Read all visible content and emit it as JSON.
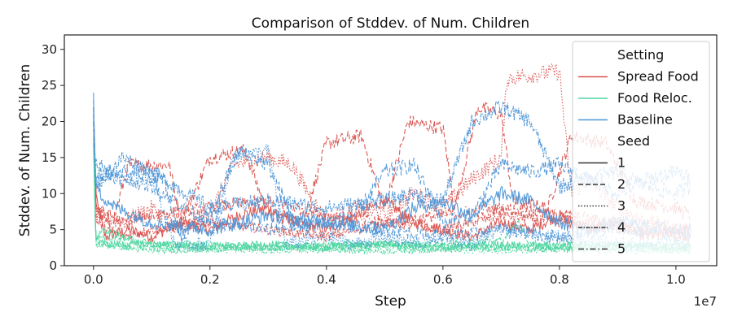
{
  "chart_data": {
    "type": "line",
    "title": "Comparison of Stddev. of Num. Children",
    "xlabel": "Step",
    "ylabel": "Stddev. of Num. Children",
    "x_offset_label": "1e7",
    "xlim": [
      -0.05,
      1.07
    ],
    "ylim": [
      0,
      32
    ],
    "xticks": [
      0.0,
      0.2,
      0.4,
      0.6,
      0.8,
      1.0
    ],
    "xtick_labels": [
      "0.0",
      "0.2",
      "0.4",
      "0.6",
      "0.8",
      "1.0"
    ],
    "yticks": [
      0,
      5,
      10,
      15,
      20,
      25,
      30
    ],
    "ytick_labels": [
      "0",
      "5",
      "10",
      "15",
      "20",
      "25",
      "30"
    ],
    "grid": false,
    "legend_placement": "upper-right",
    "legend": {
      "hue_title": "Setting",
      "hue_entries": [
        {
          "name": "Spread Food",
          "color": "#d9534f"
        },
        {
          "name": "Food Reloc.",
          "color": "#4dd6a0"
        },
        {
          "name": "Baseline",
          "color": "#4f97d8"
        }
      ],
      "style_title": "Seed",
      "style_entries": [
        {
          "name": "1",
          "dash": "solid"
        },
        {
          "name": "2",
          "dash": "dashed"
        },
        {
          "name": "3",
          "dash": "dotted"
        },
        {
          "name": "4",
          "dash": "dashdot-dense"
        },
        {
          "name": "5",
          "dash": "dashdot"
        }
      ]
    },
    "x_end": 1.025,
    "series": [
      {
        "name": "Spread Food",
        "seed": "1",
        "color": "#d9534f",
        "dash": "solid",
        "noise": 0.8,
        "points": [
          [
            0.0,
            22
          ],
          [
            0.005,
            9
          ],
          [
            0.02,
            4
          ],
          [
            0.06,
            5
          ],
          [
            0.1,
            4
          ],
          [
            0.15,
            6
          ],
          [
            0.2,
            5
          ],
          [
            0.25,
            7
          ],
          [
            0.3,
            8
          ],
          [
            0.35,
            6
          ],
          [
            0.4,
            5
          ],
          [
            0.45,
            7
          ],
          [
            0.5,
            9
          ],
          [
            0.55,
            6
          ],
          [
            0.6,
            5
          ],
          [
            0.65,
            4
          ],
          [
            0.7,
            6
          ],
          [
            0.75,
            5
          ],
          [
            0.8,
            7
          ],
          [
            0.85,
            5
          ],
          [
            0.9,
            6
          ],
          [
            0.95,
            4
          ],
          [
            1.0,
            5
          ],
          [
            1.025,
            5
          ]
        ]
      },
      {
        "name": "Spread Food",
        "seed": "2",
        "color": "#d9534f",
        "dash": "dashed",
        "noise": 1.0,
        "points": [
          [
            0.0,
            20
          ],
          [
            0.005,
            8
          ],
          [
            0.03,
            5
          ],
          [
            0.06,
            14
          ],
          [
            0.13,
            14
          ],
          [
            0.15,
            6
          ],
          [
            0.2,
            15
          ],
          [
            0.26,
            16
          ],
          [
            0.3,
            7
          ],
          [
            0.36,
            6
          ],
          [
            0.4,
            17
          ],
          [
            0.46,
            18
          ],
          [
            0.5,
            8
          ],
          [
            0.54,
            20
          ],
          [
            0.6,
            19
          ],
          [
            0.62,
            8
          ],
          [
            0.66,
            22
          ],
          [
            0.7,
            21
          ],
          [
            0.72,
            9
          ],
          [
            0.78,
            8
          ],
          [
            0.82,
            18
          ],
          [
            0.88,
            17
          ],
          [
            0.93,
            9
          ],
          [
            1.0,
            8
          ],
          [
            1.025,
            7
          ]
        ]
      },
      {
        "name": "Spread Food",
        "seed": "3",
        "color": "#d9534f",
        "dash": "dotted",
        "noise": 1.2,
        "points": [
          [
            0.0,
            21
          ],
          [
            0.005,
            7
          ],
          [
            0.05,
            6
          ],
          [
            0.1,
            8
          ],
          [
            0.15,
            5
          ],
          [
            0.2,
            7
          ],
          [
            0.24,
            14
          ],
          [
            0.3,
            15
          ],
          [
            0.34,
            14
          ],
          [
            0.4,
            6
          ],
          [
            0.45,
            8
          ],
          [
            0.5,
            7
          ],
          [
            0.55,
            10
          ],
          [
            0.6,
            8
          ],
          [
            0.65,
            12
          ],
          [
            0.7,
            15
          ],
          [
            0.71,
            26
          ],
          [
            0.8,
            27
          ],
          [
            0.82,
            10
          ],
          [
            0.85,
            12
          ],
          [
            0.9,
            8
          ],
          [
            0.95,
            6
          ],
          [
            1.0,
            5
          ],
          [
            1.025,
            4
          ]
        ]
      },
      {
        "name": "Spread Food",
        "seed": "4",
        "color": "#d9534f",
        "dash": "dashdot-dense",
        "noise": 0.7,
        "points": [
          [
            0.0,
            19
          ],
          [
            0.005,
            6
          ],
          [
            0.05,
            4
          ],
          [
            0.1,
            5
          ],
          [
            0.2,
            6
          ],
          [
            0.3,
            5
          ],
          [
            0.4,
            4
          ],
          [
            0.5,
            6
          ],
          [
            0.6,
            5
          ],
          [
            0.7,
            7
          ],
          [
            0.8,
            6
          ],
          [
            0.9,
            5
          ],
          [
            1.0,
            4
          ],
          [
            1.025,
            4
          ]
        ]
      },
      {
        "name": "Spread Food",
        "seed": "5",
        "color": "#d9534f",
        "dash": "dashdot",
        "noise": 0.9,
        "points": [
          [
            0.0,
            20
          ],
          [
            0.005,
            8
          ],
          [
            0.05,
            6
          ],
          [
            0.1,
            7
          ],
          [
            0.2,
            8
          ],
          [
            0.3,
            9
          ],
          [
            0.4,
            7
          ],
          [
            0.5,
            6
          ],
          [
            0.6,
            7
          ],
          [
            0.7,
            8
          ],
          [
            0.8,
            7
          ],
          [
            0.9,
            6
          ],
          [
            1.0,
            5
          ],
          [
            1.025,
            5
          ]
        ]
      },
      {
        "name": "Food Reloc.",
        "seed": "1",
        "color": "#4dd6a0",
        "dash": "solid",
        "noise": 0.5,
        "points": [
          [
            0.0,
            18
          ],
          [
            0.004,
            4
          ],
          [
            0.02,
            3
          ],
          [
            0.1,
            3
          ],
          [
            0.2,
            2.5
          ],
          [
            0.3,
            3
          ],
          [
            0.4,
            2.5
          ],
          [
            0.5,
            3
          ],
          [
            0.6,
            2.5
          ],
          [
            0.7,
            3
          ],
          [
            0.8,
            2.5
          ],
          [
            0.9,
            3
          ],
          [
            1.0,
            2.5
          ],
          [
            1.025,
            2.5
          ]
        ]
      },
      {
        "name": "Food Reloc.",
        "seed": "2",
        "color": "#4dd6a0",
        "dash": "dashed",
        "noise": 0.5,
        "points": [
          [
            0.0,
            17
          ],
          [
            0.004,
            4
          ],
          [
            0.02,
            5
          ],
          [
            0.05,
            4
          ],
          [
            0.1,
            3
          ],
          [
            0.2,
            3
          ],
          [
            0.3,
            2.5
          ],
          [
            0.4,
            3
          ],
          [
            0.5,
            3
          ],
          [
            0.6,
            3
          ],
          [
            0.7,
            3.5
          ],
          [
            0.73,
            6
          ],
          [
            0.75,
            3
          ],
          [
            0.8,
            3
          ],
          [
            0.9,
            2.5
          ],
          [
            1.0,
            3
          ],
          [
            1.025,
            3
          ]
        ]
      },
      {
        "name": "Food Reloc.",
        "seed": "3",
        "color": "#4dd6a0",
        "dash": "dotted",
        "noise": 0.4,
        "points": [
          [
            0.0,
            16
          ],
          [
            0.004,
            3
          ],
          [
            0.1,
            2.5
          ],
          [
            0.3,
            2
          ],
          [
            0.5,
            2.5
          ],
          [
            0.7,
            2
          ],
          [
            0.9,
            2.5
          ],
          [
            1.025,
            2
          ]
        ]
      },
      {
        "name": "Food Reloc.",
        "seed": "4",
        "color": "#4dd6a0",
        "dash": "dashdot-dense",
        "noise": 0.4,
        "points": [
          [
            0.0,
            17
          ],
          [
            0.004,
            3
          ],
          [
            0.1,
            2
          ],
          [
            0.3,
            2.5
          ],
          [
            0.5,
            2
          ],
          [
            0.7,
            2.5
          ],
          [
            0.9,
            2
          ],
          [
            1.025,
            2
          ]
        ]
      },
      {
        "name": "Food Reloc.",
        "seed": "5",
        "color": "#4dd6a0",
        "dash": "dashdot",
        "noise": 0.5,
        "points": [
          [
            0.0,
            18
          ],
          [
            0.004,
            4
          ],
          [
            0.1,
            3
          ],
          [
            0.3,
            2.5
          ],
          [
            0.5,
            3
          ],
          [
            0.7,
            2.5
          ],
          [
            0.9,
            3
          ],
          [
            1.025,
            2.5
          ]
        ]
      },
      {
        "name": "Baseline",
        "seed": "1",
        "color": "#4f97d8",
        "dash": "solid",
        "noise": 1.0,
        "points": [
          [
            0.0,
            24
          ],
          [
            0.003,
            12
          ],
          [
            0.01,
            10
          ],
          [
            0.04,
            8
          ],
          [
            0.1,
            6
          ],
          [
            0.2,
            5
          ],
          [
            0.3,
            7
          ],
          [
            0.4,
            6
          ],
          [
            0.5,
            5
          ],
          [
            0.55,
            8
          ],
          [
            0.6,
            9
          ],
          [
            0.65,
            7
          ],
          [
            0.7,
            10
          ],
          [
            0.75,
            9
          ],
          [
            0.8,
            6
          ],
          [
            0.85,
            5
          ],
          [
            0.9,
            6
          ],
          [
            1.0,
            5
          ],
          [
            1.025,
            5
          ]
        ]
      },
      {
        "name": "Baseline",
        "seed": "2",
        "color": "#4f97d8",
        "dash": "dashed",
        "noise": 1.1,
        "points": [
          [
            0.0,
            23
          ],
          [
            0.003,
            14
          ],
          [
            0.03,
            13
          ],
          [
            0.08,
            13
          ],
          [
            0.12,
            12
          ],
          [
            0.15,
            4
          ],
          [
            0.2,
            7
          ],
          [
            0.25,
            16
          ],
          [
            0.3,
            14
          ],
          [
            0.35,
            5
          ],
          [
            0.4,
            6
          ],
          [
            0.45,
            7
          ],
          [
            0.5,
            13
          ],
          [
            0.55,
            14
          ],
          [
            0.6,
            6
          ],
          [
            0.65,
            7
          ],
          [
            0.7,
            14
          ],
          [
            0.75,
            13
          ],
          [
            0.8,
            14
          ],
          [
            0.85,
            12
          ],
          [
            0.9,
            13
          ],
          [
            0.95,
            11
          ],
          [
            1.0,
            10
          ],
          [
            1.025,
            11
          ]
        ]
      },
      {
        "name": "Baseline",
        "seed": "3",
        "color": "#4f97d8",
        "dash": "dotted",
        "noise": 1.0,
        "points": [
          [
            0.0,
            22
          ],
          [
            0.003,
            13
          ],
          [
            0.05,
            12
          ],
          [
            0.1,
            12
          ],
          [
            0.14,
            3
          ],
          [
            0.2,
            3
          ],
          [
            0.24,
            15
          ],
          [
            0.3,
            16
          ],
          [
            0.33,
            3
          ],
          [
            0.4,
            4
          ],
          [
            0.45,
            3
          ],
          [
            0.5,
            4
          ],
          [
            0.55,
            3
          ],
          [
            0.6,
            4
          ],
          [
            0.65,
            3
          ],
          [
            0.7,
            5
          ],
          [
            0.8,
            4
          ],
          [
            0.9,
            3
          ],
          [
            1.0,
            3
          ],
          [
            1.025,
            3
          ]
        ]
      },
      {
        "name": "Baseline",
        "seed": "4",
        "color": "#4f97d8",
        "dash": "dashdot-dense",
        "noise": 1.1,
        "points": [
          [
            0.0,
            21
          ],
          [
            0.003,
            11
          ],
          [
            0.05,
            15
          ],
          [
            0.1,
            13
          ],
          [
            0.2,
            8
          ],
          [
            0.3,
            9
          ],
          [
            0.4,
            8
          ],
          [
            0.5,
            9
          ],
          [
            0.55,
            10
          ],
          [
            0.6,
            9
          ],
          [
            0.65,
            20
          ],
          [
            0.7,
            22
          ],
          [
            0.75,
            20
          ],
          [
            0.8,
            11
          ],
          [
            0.85,
            12
          ],
          [
            0.9,
            10
          ],
          [
            0.95,
            12
          ],
          [
            1.0,
            13
          ],
          [
            1.025,
            12
          ]
        ]
      },
      {
        "name": "Baseline",
        "seed": "5",
        "color": "#4f97d8",
        "dash": "dashdot",
        "noise": 0.9,
        "points": [
          [
            0.0,
            22
          ],
          [
            0.003,
            13
          ],
          [
            0.05,
            12
          ],
          [
            0.1,
            11
          ],
          [
            0.2,
            6
          ],
          [
            0.3,
            5
          ],
          [
            0.4,
            6
          ],
          [
            0.5,
            5
          ],
          [
            0.6,
            4
          ],
          [
            0.7,
            5
          ],
          [
            0.8,
            4
          ],
          [
            0.9,
            5
          ],
          [
            1.0,
            4
          ],
          [
            1.025,
            4
          ]
        ]
      }
    ]
  }
}
